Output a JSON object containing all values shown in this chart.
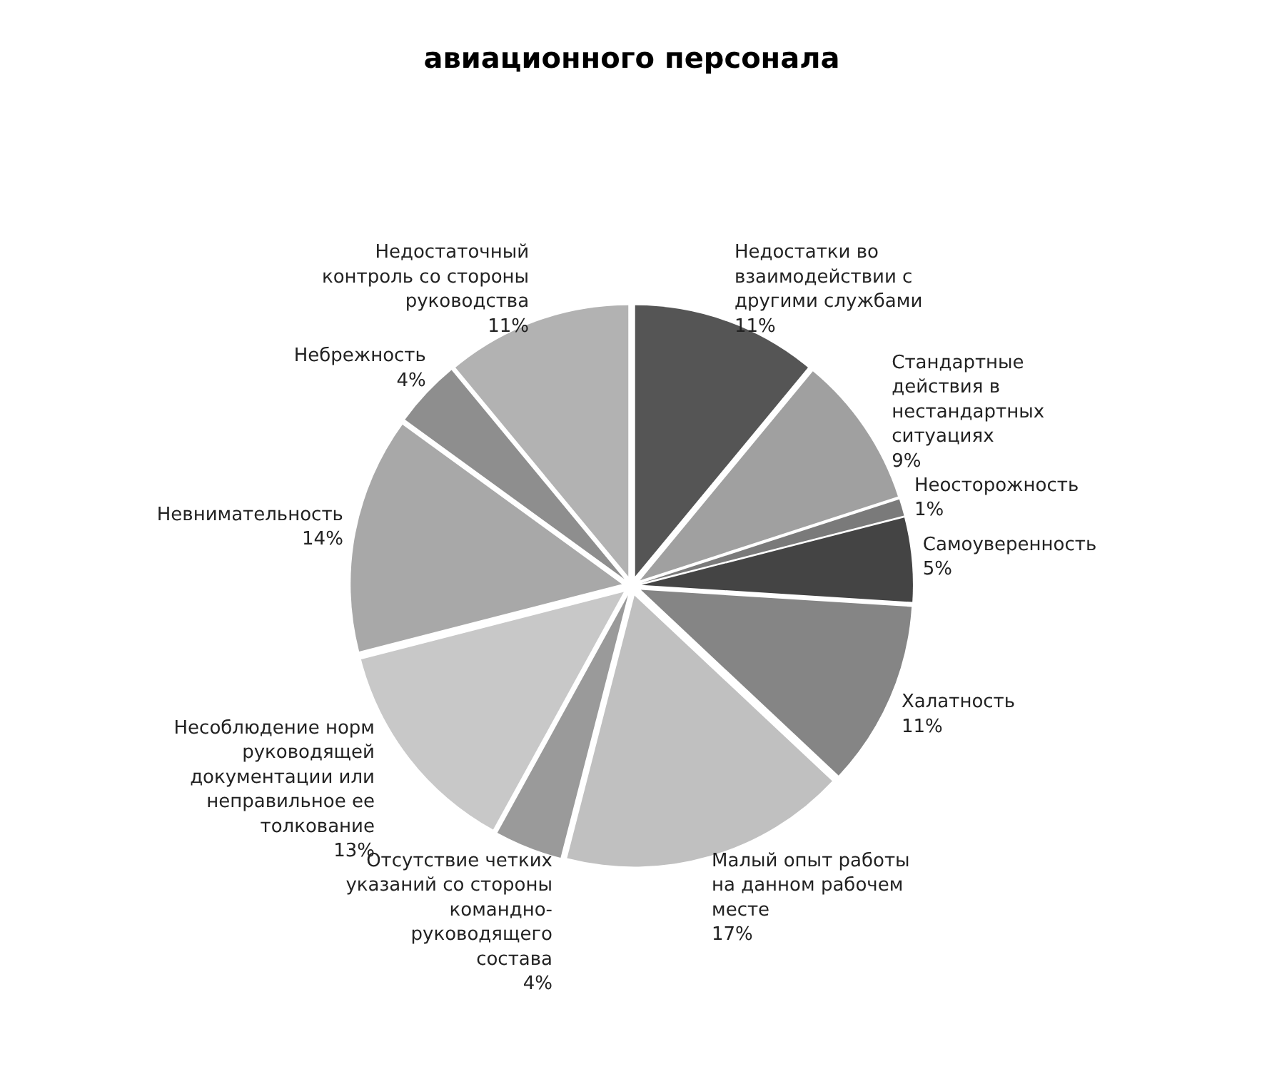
{
  "chart_data": {
    "type": "pie",
    "title": "авиационного персонала",
    "categories": [
      "Недостатки во\nвзаимодействии с\nдругими службами",
      "Стандартные\nдействия в\nнестандартных\nситуациях",
      "Неосторожность",
      "Самоуверенность",
      "Халатность",
      "Малый опыт работы\nна данном рабочем\nместе",
      "Отсутствие четких\nуказаний со стороны\nкомандно-\nруководящего\nсостава",
      "Несоблюдение норм\nруководящей\nдокументации или\nнеправильное ее\nтолкование",
      "Невнимательность",
      "Небрежность",
      "Недостаточный\nконтроль со стороны\nруководства"
    ],
    "values": [
      11,
      9,
      1,
      5,
      11,
      17,
      4,
      13,
      14,
      4,
      11
    ],
    "value_labels": [
      "11%",
      "9%",
      "1%",
      "5%",
      "11%",
      "17%",
      "4%",
      "13%",
      "14%",
      "4%",
      "11%"
    ],
    "colors": [
      "#555555",
      "#a0a0a0",
      "#7a7a7a",
      "#444444",
      "#858585",
      "#c0c0c0",
      "#9a9a9a",
      "#c8c8c8",
      "#a8a8a8",
      "#8e8e8e",
      "#b2b2b2"
    ]
  }
}
